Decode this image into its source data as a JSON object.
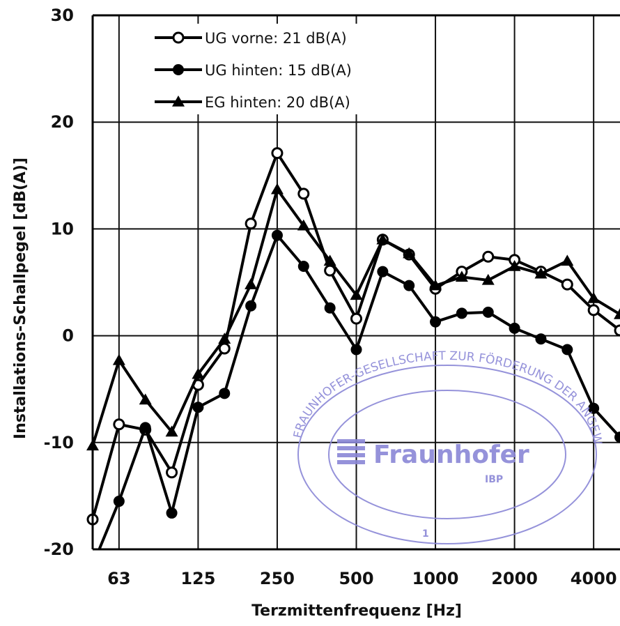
{
  "chart_data": {
    "type": "line",
    "title": "",
    "xlabel": "Terzmittenfrequenz [Hz]",
    "ylabel": "Installations-Schallpegel [dB(A)]",
    "ylim": [
      -20,
      30
    ],
    "yticks": [
      "-20",
      "-10",
      "0",
      "10",
      "20",
      "30"
    ],
    "xlim_index": [
      0,
      20
    ],
    "xticks": [
      {
        "label": "63",
        "index": 1
      },
      {
        "label": "125",
        "index": 4
      },
      {
        "label": "250",
        "index": 7
      },
      {
        "label": "500",
        "index": 10
      },
      {
        "label": "1000",
        "index": 13
      },
      {
        "label": "2000",
        "index": 16
      },
      {
        "label": "4000",
        "index": 19
      }
    ],
    "x_index": [
      0,
      1,
      2,
      3,
      4,
      5,
      6,
      7,
      8,
      9,
      10,
      11,
      12,
      13,
      14,
      15,
      16,
      17,
      18,
      19,
      20
    ],
    "grid": true,
    "legend_position": "top-left",
    "series": [
      {
        "name": "UG vorne: 21 dB(A)",
        "marker": "open-circle",
        "values": [
          -17.2,
          -8.3,
          -8.8,
          -12.8,
          -4.6,
          -1.2,
          10.5,
          17.1,
          13.3,
          6.1,
          1.6,
          9.0,
          7.6,
          4.4,
          6.0,
          7.4,
          7.1,
          6.0,
          4.8,
          2.4,
          0.5
        ]
      },
      {
        "name": "UG hinten: 15 dB(A)",
        "marker": "filled-circle",
        "values": [
          -21.5,
          -15.5,
          -8.6,
          -16.6,
          -6.7,
          -5.4,
          2.8,
          9.4,
          6.5,
          2.6,
          -1.3,
          6.0,
          4.7,
          1.3,
          2.1,
          2.2,
          0.7,
          -0.3,
          -1.3,
          -6.8,
          -9.5
        ]
      },
      {
        "name": "EG hinten: 20 dB(A)",
        "marker": "filled-triangle",
        "values": [
          -10.3,
          -2.3,
          -6.0,
          -9.0,
          -3.6,
          -0.3,
          4.8,
          13.7,
          10.3,
          7.0,
          3.8,
          9.0,
          7.7,
          4.7,
          5.5,
          5.2,
          6.5,
          5.8,
          7.0,
          3.5,
          2.0
        ]
      }
    ]
  },
  "stamp": {
    "ring_text": "FRAUNHOFER-GESELLSCHAFT ZUR FÖRDERUNG DER ANGEWANDTEN FORSCHUNG E.V.",
    "brand": "Fraunhofer",
    "institute": "IBP",
    "number": "1",
    "color": "#8a87d6"
  }
}
